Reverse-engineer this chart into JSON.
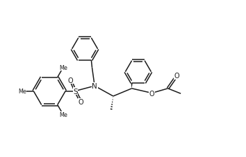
{
  "bg_color": "#ffffff",
  "line_color": "#1a1a1a",
  "line_width": 1.1,
  "figsize": [
    3.54,
    2.28
  ],
  "dpi": 100,
  "xlim": [
    0.0,
    9.5
  ],
  "ylim": [
    0.2,
    6.2
  ]
}
